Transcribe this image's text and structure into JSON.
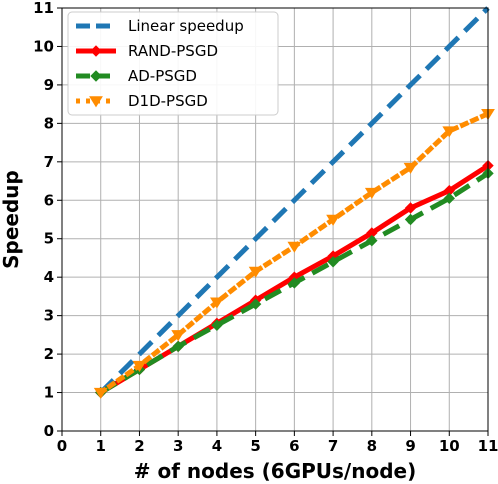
{
  "chart_data": {
    "type": "line",
    "xlabel": "# of nodes (6GPUs/node)",
    "ylabel": "Speedup",
    "xlim": [
      0,
      11
    ],
    "ylim": [
      0,
      11
    ],
    "xticks": [
      0,
      1,
      2,
      3,
      4,
      5,
      6,
      7,
      8,
      9,
      10,
      11
    ],
    "yticks": [
      0,
      1,
      2,
      3,
      4,
      5,
      6,
      7,
      8,
      9,
      10,
      11
    ],
    "grid": true,
    "legend_position": "top-left",
    "series": [
      {
        "name": "Linear speedup",
        "color": "#1f77b4",
        "style": "dashed",
        "marker": "none",
        "x": [
          1,
          2,
          3,
          4,
          5,
          6,
          7,
          8,
          9,
          10,
          11
        ],
        "y": [
          1,
          2,
          3,
          4,
          5,
          6,
          7,
          8,
          9,
          10,
          11
        ]
      },
      {
        "name": "RAND-PSGD",
        "color": "#ff0000",
        "style": "solid",
        "marker": "diamond",
        "x": [
          1,
          2,
          3,
          4,
          5,
          6,
          7,
          8,
          9,
          10,
          11
        ],
        "y": [
          1.0,
          1.6,
          2.2,
          2.8,
          3.4,
          4.0,
          4.55,
          5.15,
          5.8,
          6.25,
          6.9
        ]
      },
      {
        "name": "AD-PSGD",
        "color": "#228b22",
        "style": "dashed",
        "marker": "diamond",
        "x": [
          1,
          2,
          3,
          4,
          5,
          6,
          7,
          8,
          9,
          10,
          11
        ],
        "y": [
          1.0,
          1.6,
          2.2,
          2.75,
          3.3,
          3.85,
          4.4,
          4.95,
          5.5,
          6.05,
          6.7
        ]
      },
      {
        "name": "D1D-PSGD",
        "color": "#ff8c00",
        "style": "dotted",
        "marker": "triangle-down",
        "x": [
          1,
          2,
          3,
          4,
          5,
          6,
          7,
          8,
          9,
          10,
          11
        ],
        "y": [
          1.0,
          1.7,
          2.5,
          3.35,
          4.15,
          4.8,
          5.5,
          6.2,
          6.85,
          7.8,
          8.25
        ]
      }
    ]
  }
}
